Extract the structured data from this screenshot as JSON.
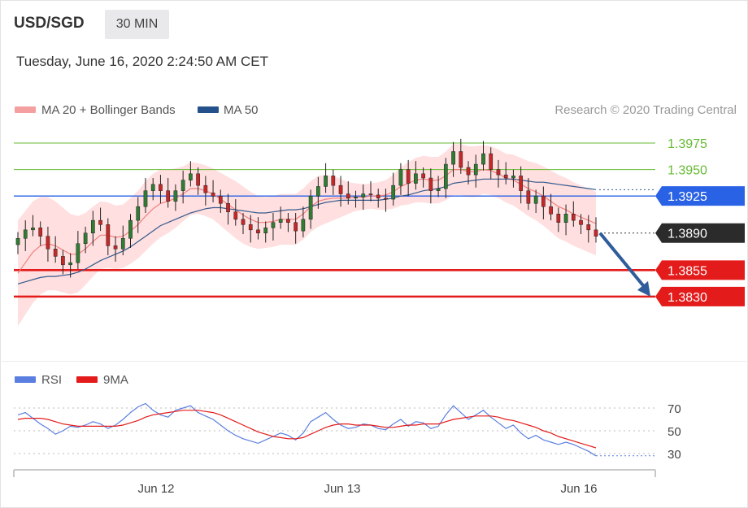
{
  "header": {
    "pair": "USD/SGD",
    "timeframe": "30 MIN",
    "datetime": "Tuesday, June 16, 2020 2:24:50 AM CET"
  },
  "colors": {
    "ma20": "#f08080",
    "ma20_legend": "#f4a0a0",
    "bb_fill": "#ffd9d9",
    "ma50": "#355a8e",
    "ma50_legend": "#24508c",
    "green_level": "#66bb33",
    "blue_level": "#2a62e6",
    "red_level": "#e31b1b",
    "current": "#2b2b2b",
    "arrow": "#2f5c9a",
    "rsi": "#5b7fe0",
    "rsi_ma": "#e31b1b",
    "candle_up": "#2e7d32",
    "candle_down": "#c62828"
  },
  "chart_data": [
    {
      "type": "candlestick",
      "legend": [
        {
          "name": "MA 20 + Bollinger Bands",
          "color": "#f4a0a0"
        },
        {
          "name": "MA 50",
          "color": "#24508c"
        }
      ],
      "credit": "Research © 2020 Trading Central",
      "x_ticks": [
        "Jun 12",
        "Jun 13",
        "Jun 16"
      ],
      "ylim": [
        1.378,
        1.3995
      ],
      "levels": [
        {
          "value": 1.3975,
          "label": "1.3975",
          "kind": "resistance"
        },
        {
          "value": 1.395,
          "label": "1.3950",
          "kind": "resistance"
        },
        {
          "value": 1.3925,
          "label": "1.3925",
          "kind": "pivot"
        },
        {
          "value": 1.389,
          "label": "1.3890",
          "kind": "current"
        },
        {
          "value": 1.3855,
          "label": "1.3855",
          "kind": "support"
        },
        {
          "value": 1.383,
          "label": "1.3830",
          "kind": "support"
        }
      ],
      "close": [
        1.3885,
        1.3893,
        1.3895,
        1.3887,
        1.3875,
        1.3868,
        1.386,
        1.3862,
        1.388,
        1.389,
        1.3902,
        1.3898,
        1.3878,
        1.3875,
        1.3885,
        1.3902,
        1.3915,
        1.393,
        1.3936,
        1.393,
        1.392,
        1.393,
        1.394,
        1.3946,
        1.3935,
        1.3928,
        1.3925,
        1.3918,
        1.391,
        1.3903,
        1.3898,
        1.3893,
        1.389,
        1.3895,
        1.39,
        1.3903,
        1.39,
        1.3892,
        1.3903,
        1.3925,
        1.3934,
        1.3944,
        1.3935,
        1.3927,
        1.3923,
        1.3924,
        1.3927,
        1.3926,
        1.3923,
        1.3922,
        1.3935,
        1.395,
        1.3937,
        1.3946,
        1.3942,
        1.393,
        1.3932,
        1.3955,
        1.3967,
        1.3952,
        1.3945,
        1.3955,
        1.3965,
        1.395,
        1.3945,
        1.3942,
        1.3944,
        1.393,
        1.3918,
        1.3925,
        1.3915,
        1.3908,
        1.39,
        1.3908,
        1.3902,
        1.3898,
        1.3893,
        1.3887
      ],
      "ma20": [
        1.3852,
        1.3862,
        1.3872,
        1.3878,
        1.388,
        1.3878,
        1.3874,
        1.387,
        1.387,
        1.3875,
        1.3882,
        1.3888,
        1.3888,
        1.3886,
        1.3887,
        1.3892,
        1.3898,
        1.3906,
        1.3913,
        1.3918,
        1.392,
        1.3923,
        1.3927,
        1.3932,
        1.3932,
        1.393,
        1.3927,
        1.3922,
        1.3917,
        1.3912,
        1.3907,
        1.3903,
        1.39,
        1.39,
        1.3901,
        1.3903,
        1.3903,
        1.3903,
        1.3908,
        1.3915,
        1.392,
        1.3922,
        1.3923,
        1.3923,
        1.3923,
        1.3924,
        1.3924,
        1.3925,
        1.3925,
        1.3926,
        1.3929,
        1.3934,
        1.3937,
        1.394,
        1.3941,
        1.394,
        1.394,
        1.3944,
        1.395,
        1.395,
        1.3948,
        1.3948,
        1.395,
        1.3949,
        1.3946,
        1.3942,
        1.394,
        1.3936,
        1.3932,
        1.3929,
        1.3925,
        1.392,
        1.3915,
        1.3912,
        1.3908,
        1.3905,
        1.3902,
        1.3899
      ],
      "ma50": [
        1.3842,
        1.3844,
        1.3846,
        1.3848,
        1.3849,
        1.3849,
        1.385,
        1.3851,
        1.3853,
        1.3856,
        1.386,
        1.3864,
        1.3867,
        1.387,
        1.3873,
        1.3877,
        1.3882,
        1.3887,
        1.3892,
        1.3897,
        1.39,
        1.3903,
        1.3906,
        1.3909,
        1.3911,
        1.3913,
        1.3914,
        1.3914,
        1.3913,
        1.3912,
        1.3911,
        1.391,
        1.3909,
        1.3909,
        1.391,
        1.3911,
        1.3912,
        1.3912,
        1.3913,
        1.3915,
        1.3917,
        1.3919,
        1.392,
        1.3921,
        1.3921,
        1.3921,
        1.3921,
        1.3921,
        1.3921,
        1.3922,
        1.3923,
        1.3925,
        1.3926,
        1.3928,
        1.393,
        1.3931,
        1.3932,
        1.3934,
        1.3937,
        1.3938,
        1.3939,
        1.394,
        1.3941,
        1.3941,
        1.3941,
        1.3941,
        1.3941,
        1.394,
        1.3939,
        1.3938,
        1.3938,
        1.3937,
        1.3936,
        1.3935,
        1.3934,
        1.3933,
        1.3932,
        1.3931
      ],
      "bb_width": [
        0.005,
        0.0049,
        0.0048,
        0.0046,
        0.0044,
        0.0042,
        0.004,
        0.0038,
        0.0036,
        0.0034,
        0.0033,
        0.0032,
        0.0031,
        0.003,
        0.003,
        0.0031,
        0.0032,
        0.0033,
        0.0033,
        0.0032,
        0.003,
        0.0028,
        0.0026,
        0.0025,
        0.0024,
        0.0024,
        0.0024,
        0.0025,
        0.0026,
        0.0027,
        0.0027,
        0.0026,
        0.0025,
        0.0024,
        0.0024,
        0.0024,
        0.0024,
        0.0024,
        0.0024,
        0.0024,
        0.0024,
        0.0023,
        0.0021,
        0.0018,
        0.0015,
        0.0013,
        0.0012,
        0.0012,
        0.0013,
        0.0014,
        0.0016,
        0.0018,
        0.002,
        0.0021,
        0.0022,
        0.0022,
        0.0022,
        0.0023,
        0.0024,
        0.0024,
        0.0024,
        0.0024,
        0.0023,
        0.0023,
        0.0023,
        0.0023,
        0.0024,
        0.0025,
        0.0026,
        0.0027,
        0.0028,
        0.0029,
        0.003,
        0.003,
        0.003,
        0.003,
        0.003,
        0.003
      ],
      "projection": {
        "from": 1.389,
        "to": 1.383
      }
    },
    {
      "type": "line",
      "legend": [
        {
          "name": "RSI",
          "color": "#5b7fe0"
        },
        {
          "name": "9MA",
          "color": "#e31b1b"
        }
      ],
      "y_ticks": [
        70,
        50,
        30
      ],
      "ylim": [
        20,
        80
      ],
      "series": [
        {
          "name": "RSI",
          "values": [
            64,
            66,
            61,
            56,
            52,
            47,
            50,
            54,
            53,
            55,
            58,
            56,
            52,
            55,
            60,
            66,
            71,
            74,
            68,
            64,
            62,
            68,
            70,
            72,
            66,
            63,
            60,
            55,
            50,
            46,
            43,
            41,
            39,
            42,
            45,
            48,
            46,
            42,
            48,
            58,
            62,
            66,
            60,
            55,
            52,
            53,
            56,
            55,
            52,
            51,
            56,
            60,
            54,
            58,
            57,
            52,
            54,
            64,
            72,
            66,
            60,
            64,
            68,
            62,
            57,
            52,
            55,
            48,
            43,
            46,
            42,
            40,
            38,
            40,
            38,
            35,
            32,
            28
          ]
        },
        {
          "name": "9MA",
          "values": [
            60,
            61,
            61,
            61,
            60,
            58,
            56,
            55,
            54,
            54,
            54,
            54,
            54,
            54,
            55,
            57,
            59,
            62,
            64,
            65,
            66,
            67,
            68,
            68,
            68,
            67,
            66,
            64,
            61,
            58,
            55,
            52,
            49,
            47,
            45,
            44,
            43,
            43,
            44,
            47,
            50,
            53,
            55,
            56,
            56,
            55,
            55,
            55,
            54,
            53,
            53,
            54,
            55,
            55,
            56,
            56,
            56,
            58,
            60,
            61,
            62,
            63,
            63,
            63,
            62,
            60,
            59,
            57,
            55,
            53,
            50,
            48,
            45,
            43,
            41,
            39,
            37,
            35
          ]
        }
      ]
    }
  ]
}
